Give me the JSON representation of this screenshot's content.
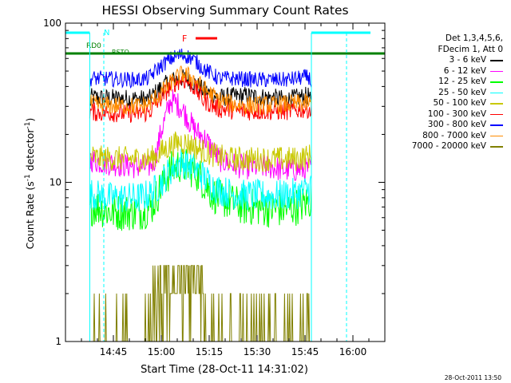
{
  "chart_data": {
    "type": "line",
    "title": "HESSI Observing Summary Count Rates",
    "xlabel": "Start Time (28-Oct-11 14:31:02)",
    "ylabel": "Count Rate (s-1 detector-1)",
    "y_scale": "log",
    "ylim": [
      1,
      100
    ],
    "xlim_minutes_after_1430": [
      0,
      100
    ],
    "x_tick_labels": [
      "14:45",
      "15:00",
      "15:15",
      "15:30",
      "15:45",
      "16:00"
    ],
    "y_tick_labels": [
      "1",
      "10",
      "100"
    ],
    "legend_header": [
      "Det 1,3,4,5,6,",
      "FDecim 1, Att 0"
    ],
    "legend_placement": "right",
    "series": [
      {
        "name": "3 - 6 keV",
        "color": "#000000",
        "times": [
          7.6,
          8,
          9,
          23,
          26,
          29,
          32,
          34,
          36,
          37,
          39,
          41,
          43,
          48,
          52,
          56,
          60,
          65,
          69,
          76.2,
          77
        ],
        "values": [
          30,
          34,
          34,
          33.5,
          33,
          38,
          42,
          44,
          45,
          45,
          44,
          41,
          38,
          34,
          34.5,
          35,
          34.5,
          34,
          33,
          35,
          30
        ]
      },
      {
        "name": "6 - 12 keV",
        "color": "#ff00ff",
        "times": [
          7.6,
          8,
          10,
          23,
          26,
          28,
          30,
          33,
          36,
          38,
          40,
          42,
          44,
          46,
          48,
          52,
          56,
          60,
          64,
          68,
          72,
          76.2,
          77
        ],
        "values": [
          13,
          14,
          13.5,
          12.5,
          12.5,
          14,
          21,
          33,
          30,
          26,
          22,
          20,
          18.5,
          16,
          14,
          13,
          12.5,
          12.5,
          12.5,
          12,
          12,
          12,
          13
        ]
      },
      {
        "name": "12 - 25 keV",
        "color": "#00ff00",
        "times": [
          7.6,
          8,
          10,
          14,
          18,
          23,
          27,
          30,
          33,
          36,
          38,
          40,
          42,
          44,
          46,
          48,
          52,
          56,
          60,
          64,
          68,
          72,
          76.2,
          77
        ],
        "values": [
          6.5,
          7,
          7,
          6.5,
          6.5,
          6.5,
          7,
          9.5,
          12,
          13,
          12.5,
          12,
          11,
          9.5,
          8.5,
          8,
          7.5,
          7,
          7,
          6.8,
          6.8,
          7,
          7.5,
          8
        ]
      },
      {
        "name": "25 - 50 keV",
        "color": "#00ffff",
        "times": [
          7.6,
          8,
          10,
          14,
          18,
          23,
          27,
          30,
          33,
          36,
          38,
          40,
          42,
          44,
          46,
          48,
          52,
          56,
          60,
          64,
          68,
          72,
          76.2,
          77
        ],
        "values": [
          8,
          8.5,
          8.3,
          8,
          8,
          8,
          8.5,
          10,
          12,
          13.5,
          13,
          12.5,
          11.5,
          10.5,
          9.5,
          9,
          8.5,
          8.3,
          8.3,
          8.2,
          8.3,
          8.5,
          9,
          10
        ]
      },
      {
        "name": "50 - 100 keV",
        "color": "#c8c800",
        "times": [
          7.6,
          8,
          10,
          23,
          26,
          28,
          30,
          33,
          36,
          38,
          40,
          42,
          44,
          46,
          48,
          52,
          56,
          60,
          64,
          68,
          72,
          76.2,
          77
        ],
        "values": [
          14,
          14.5,
          14.2,
          14,
          14,
          14.5,
          15.5,
          17,
          18,
          17.5,
          17,
          16,
          15.5,
          15,
          14.5,
          14,
          14,
          14,
          14,
          14,
          14,
          14.5,
          15
        ]
      },
      {
        "name": "100 - 300 keV",
        "color": "#ff0000",
        "times": [
          7.6,
          8,
          10,
          23,
          26,
          29,
          32,
          34,
          36,
          37,
          39,
          41,
          43,
          48,
          52,
          56,
          60,
          65,
          69,
          76.2,
          77
        ],
        "values": [
          27,
          28,
          27.5,
          27,
          27.5,
          32,
          38,
          42,
          44,
          44,
          42,
          38,
          33,
          29,
          28.5,
          28,
          28,
          28,
          28,
          29,
          28
        ]
      },
      {
        "name": "300 - 800 keV",
        "color": "#0000ff",
        "times": [
          7.6,
          8,
          9,
          23,
          26,
          29,
          32,
          34,
          36,
          37,
          39,
          41,
          43,
          48,
          52,
          56,
          60,
          65,
          69,
          76.2,
          77
        ],
        "values": [
          41,
          45,
          45,
          44,
          45,
          52,
          58,
          61,
          63,
          63,
          61,
          57,
          52,
          45,
          45,
          44.5,
          44,
          44,
          44,
          46,
          42
        ]
      },
      {
        "name": "800 - 7000 keV",
        "color": "#ff8c00",
        "times": [
          7.6,
          8,
          10,
          23,
          26,
          29,
          32,
          34,
          36,
          37,
          39,
          41,
          43,
          48,
          52,
          56,
          60,
          65,
          69,
          76.2,
          77
        ],
        "values": [
          31,
          31,
          30.5,
          30,
          31,
          35,
          40,
          44,
          47,
          48,
          46,
          43,
          39,
          33,
          31,
          30.5,
          30.5,
          30.5,
          31,
          31.5,
          30
        ]
      },
      {
        "name": "7000 - 20000 keV",
        "color": "#808000",
        "times": [
          7.6,
          8,
          9,
          20,
          21,
          22,
          24,
          26,
          28,
          30,
          33,
          36,
          38,
          40,
          42,
          44,
          46,
          48,
          50,
          52,
          56,
          60,
          64,
          68,
          72,
          74,
          76.2,
          77
        ],
        "values": [
          1,
          1.5,
          1,
          1,
          1,
          1,
          1,
          1,
          2,
          2.5,
          3,
          2.5,
          2.5,
          2,
          2,
          1.5,
          1.5,
          1,
          1,
          1,
          1,
          1,
          1,
          1,
          1,
          1.5,
          1,
          1
        ]
      }
    ],
    "annotations": {
      "night_label": "N",
      "saa_label": "RD0",
      "flare_label": "F",
      "saa_second_label": "RSTO"
    },
    "footer_timestamp": "28-Oct-2011 13:50"
  }
}
